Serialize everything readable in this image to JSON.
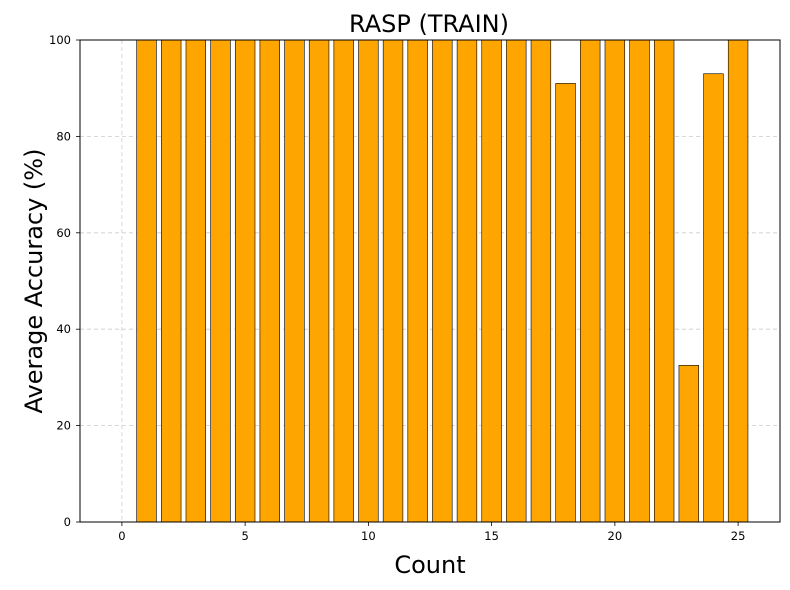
{
  "chart_data": {
    "type": "bar",
    "title": "RASP (TRAIN)",
    "xlabel": "Count",
    "ylabel": "Average Accuracy (%)",
    "x": [
      1,
      2,
      3,
      4,
      5,
      6,
      7,
      8,
      9,
      10,
      11,
      12,
      13,
      14,
      15,
      16,
      17,
      18,
      19,
      20,
      21,
      22,
      23,
      24,
      25
    ],
    "values": [
      100,
      100,
      100,
      100,
      100,
      100,
      100,
      100,
      100,
      100,
      100,
      100,
      100,
      100,
      100,
      100,
      100,
      91,
      100,
      100,
      100,
      100,
      32.5,
      93,
      100
    ],
    "xlim": [
      -1.7,
      26.7
    ],
    "ylim": [
      0,
      100
    ],
    "xticks": [
      0,
      5,
      10,
      15,
      20,
      25
    ],
    "yticks": [
      0,
      20,
      40,
      60,
      80,
      100
    ],
    "grid": true,
    "bar_color": "#ffa500",
    "edge_color": "#000000",
    "grid_color": "#cccccc"
  }
}
